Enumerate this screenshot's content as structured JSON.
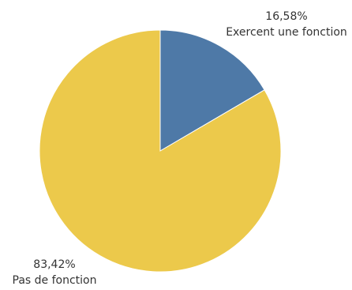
{
  "chart_data": {
    "type": "pie",
    "slices": [
      {
        "label": "Exercent une fonction",
        "percent_text": "16,58%",
        "value": 16.58,
        "color": "#4e79a7"
      },
      {
        "label": "Pas de fonction",
        "percent_text": "83,42%",
        "value": 83.42,
        "color": "#ecc94b"
      }
    ],
    "start_angle": "12 o'clock",
    "direction": "clockwise",
    "legend": "none"
  }
}
